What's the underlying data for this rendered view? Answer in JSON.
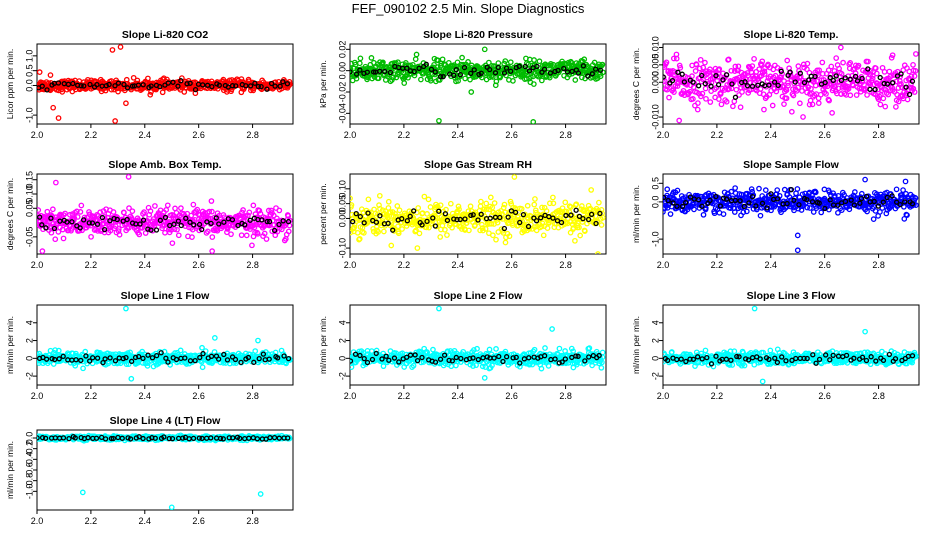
{
  "page": {
    "title": "FEF_090102  2.5 Min. Slope Diagnostics"
  },
  "chart_data": [
    {
      "type": "scatter",
      "title": "Slope Li-820 CO2",
      "ylabel": "Licor ppm per min.",
      "xlim": [
        2.0,
        2.95
      ],
      "ylim": [
        -1.3,
        1.4
      ],
      "xticks": [
        "2.0",
        "2.2",
        "2.4",
        "2.6",
        "2.8"
      ],
      "yticks": [
        "-1.0",
        "0.0",
        "0.5",
        "1.0"
      ],
      "color": "#ff0000",
      "spread": 0.15,
      "x_range": [
        2.0,
        2.94
      ],
      "outliers": [
        {
          "x": 2.01,
          "y": 0.45
        },
        {
          "x": 2.05,
          "y": 0.35
        },
        {
          "x": 2.06,
          "y": -0.75
        },
        {
          "x": 2.08,
          "y": -1.1
        },
        {
          "x": 2.28,
          "y": 1.2
        },
        {
          "x": 2.31,
          "y": 1.3
        },
        {
          "x": 2.29,
          "y": -1.2
        },
        {
          "x": 2.33,
          "y": -0.6
        }
      ]
    },
    {
      "type": "scatter",
      "title": "Slope Li-820 Pressure",
      "ylabel": "kPa per min.",
      "xlim": [
        2.0,
        2.95
      ],
      "ylim": [
        -0.05,
        0.025
      ],
      "xticks": [
        "2.0",
        "2.2",
        "2.4",
        "2.6",
        "2.8"
      ],
      "yticks": [
        "-0.04",
        "-0.02",
        "0.00",
        "0.02"
      ],
      "color": "#00bb00",
      "spread": 0.008,
      "x_range": [
        2.0,
        2.94
      ],
      "outliers": [
        {
          "x": 2.33,
          "y": -0.047
        },
        {
          "x": 2.68,
          "y": -0.048
        },
        {
          "x": 2.5,
          "y": 0.02
        },
        {
          "x": 2.45,
          "y": -0.02
        }
      ]
    },
    {
      "type": "scatter",
      "title": "Slope Li-820 Temp.",
      "ylabel": "degrees C per min.",
      "xlim": [
        2.0,
        2.95
      ],
      "ylim": [
        -0.012,
        0.011
      ],
      "xticks": [
        "2.0",
        "2.2",
        "2.4",
        "2.6",
        "2.8"
      ],
      "yticks": [
        "-0.010",
        "0.000",
        "0.005",
        "0.010"
      ],
      "color": "#ff00ff",
      "spread": 0.005,
      "x_range": [
        2.0,
        2.94
      ],
      "outliers": [
        {
          "x": 2.06,
          "y": -0.011
        },
        {
          "x": 2.66,
          "y": 0.01
        },
        {
          "x": 2.05,
          "y": 0.008
        }
      ]
    },
    {
      "type": "scatter",
      "title": "Slope Amb. Box Temp.",
      "ylabel": "degrees C per min.",
      "xlim": [
        2.0,
        2.95
      ],
      "ylim": [
        -0.11,
        0.17
      ],
      "xticks": [
        "2.0",
        "2.2",
        "2.4",
        "2.6",
        "2.8"
      ],
      "yticks": [
        "-0.05",
        "0.05",
        "0.10",
        "0.15"
      ],
      "color": "#ff00ff",
      "spread": 0.04,
      "x_range": [
        2.0,
        2.94
      ],
      "outliers": [
        {
          "x": 2.34,
          "y": 0.16
        },
        {
          "x": 2.07,
          "y": 0.14
        },
        {
          "x": 2.02,
          "y": -0.1
        },
        {
          "x": 2.65,
          "y": -0.1
        }
      ]
    },
    {
      "type": "scatter",
      "title": "Slope Gas Stream RH",
      "ylabel": "percent per min.",
      "xlim": [
        2.0,
        2.95
      ],
      "ylim": [
        -0.12,
        0.15
      ],
      "xticks": [
        "2.0",
        "2.2",
        "2.4",
        "2.6",
        "2.8"
      ],
      "yticks": [
        "-0.10",
        "0.00",
        "0.05",
        "0.10"
      ],
      "color": "#ffff00",
      "spread": 0.045,
      "x_range": [
        2.0,
        2.94
      ],
      "outliers": [
        {
          "x": 2.61,
          "y": 0.14
        },
        {
          "x": 2.92,
          "y": -0.12
        },
        {
          "x": 2.25,
          "y": -0.1
        }
      ]
    },
    {
      "type": "scatter",
      "title": "Slope Sample Flow",
      "ylabel": "ml/min per min.",
      "xlim": [
        2.0,
        2.95
      ],
      "ylim": [
        -1.4,
        0.75
      ],
      "xticks": [
        "2.0",
        "2.2",
        "2.4",
        "2.6",
        "2.8"
      ],
      "yticks": [
        "-1.0",
        "0.0",
        "0.5"
      ],
      "color": "#0000ff",
      "spread": 0.25,
      "x_range": [
        2.0,
        2.94
      ],
      "outliers": [
        {
          "x": 2.5,
          "y": -1.3
        },
        {
          "x": 2.5,
          "y": -0.9
        },
        {
          "x": 2.9,
          "y": 0.55
        },
        {
          "x": 2.75,
          "y": 0.6
        }
      ]
    },
    {
      "type": "scatter",
      "title": "Slope Line 1 Flow",
      "ylabel": "ml/min per min.",
      "xlim": [
        2.0,
        2.95
      ],
      "ylim": [
        -3,
        6
      ],
      "xticks": [
        "2.0",
        "2.2",
        "2.4",
        "2.6",
        "2.8"
      ],
      "yticks": [
        "-2",
        "0",
        "2",
        "4"
      ],
      "color": "#00ffff",
      "spread": 0.6,
      "x_range": [
        2.0,
        2.94
      ],
      "outliers": [
        {
          "x": 2.33,
          "y": 5.6
        },
        {
          "x": 2.35,
          "y": -2.3
        },
        {
          "x": 2.66,
          "y": 2.3
        },
        {
          "x": 2.82,
          "y": 2.0
        }
      ]
    },
    {
      "type": "scatter",
      "title": "Slope Line 2 Flow",
      "ylabel": "ml/min per min.",
      "xlim": [
        2.0,
        2.95
      ],
      "ylim": [
        -3,
        6
      ],
      "xticks": [
        "2.0",
        "2.2",
        "2.4",
        "2.6",
        "2.8"
      ],
      "yticks": [
        "-2",
        "0",
        "2",
        "4"
      ],
      "color": "#00ffff",
      "spread": 0.7,
      "x_range": [
        2.0,
        2.94
      ],
      "outliers": [
        {
          "x": 2.33,
          "y": 5.6
        },
        {
          "x": 2.75,
          "y": 3.3
        },
        {
          "x": 2.5,
          "y": -2.2
        }
      ]
    },
    {
      "type": "scatter",
      "title": "Slope Line 3 Flow",
      "ylabel": "ml/min per min.",
      "xlim": [
        2.0,
        2.95
      ],
      "ylim": [
        -3,
        6
      ],
      "xticks": [
        "2.0",
        "2.2",
        "2.4",
        "2.6",
        "2.8"
      ],
      "yticks": [
        "-2",
        "0",
        "2",
        "4"
      ],
      "color": "#00ffff",
      "spread": 0.6,
      "x_range": [
        2.0,
        2.94
      ],
      "outliers": [
        {
          "x": 2.34,
          "y": 5.6
        },
        {
          "x": 2.37,
          "y": -2.6
        },
        {
          "x": 2.75,
          "y": 3.0
        }
      ]
    },
    {
      "type": "scatter",
      "title": "Slope Line 4 (LT) Flow",
      "ylabel": "ml/min per min.",
      "xlim": [
        2.0,
        2.95
      ],
      "ylim": [
        -1.35,
        0.15
      ],
      "xticks": [
        "2.0",
        "2.2",
        "2.4",
        "2.6",
        "2.8"
      ],
      "yticks": [
        "-1.0",
        "-0.8",
        "-0.6",
        "-0.4",
        "-0.2",
        "0.0"
      ],
      "color": "#00ffff",
      "spread": 0.03,
      "x_range": [
        2.0,
        2.94
      ],
      "outliers": [
        {
          "x": 2.17,
          "y": -1.02
        },
        {
          "x": 2.5,
          "y": -1.3
        },
        {
          "x": 2.83,
          "y": -1.05
        }
      ]
    }
  ]
}
